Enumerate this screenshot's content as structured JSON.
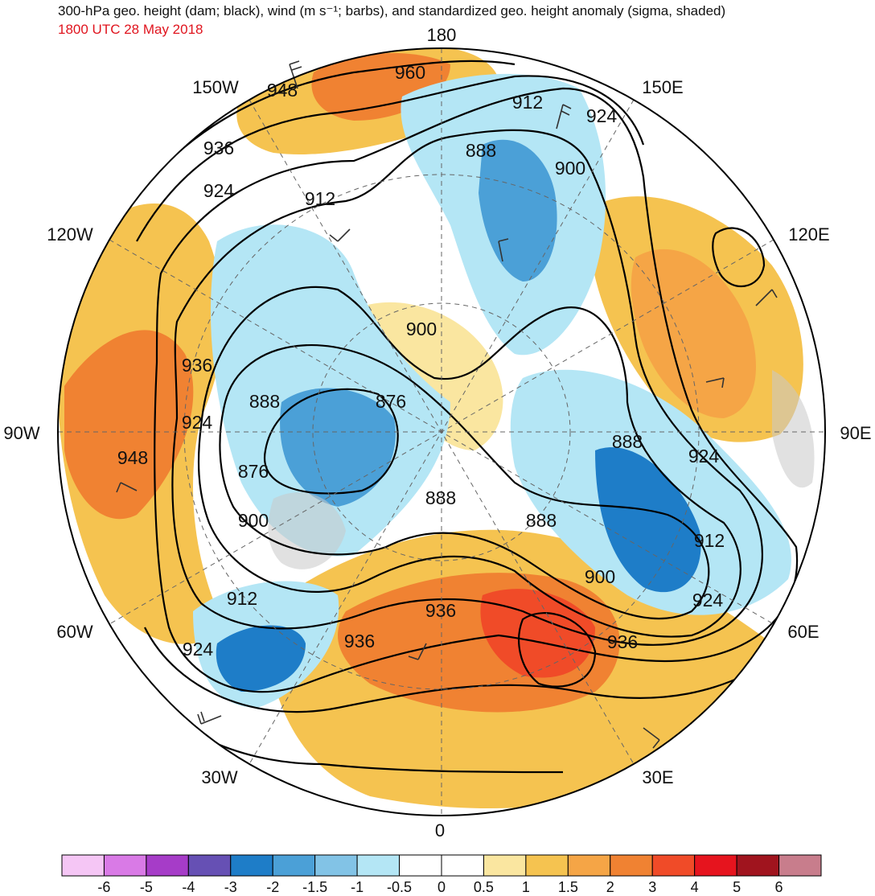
{
  "header": {
    "title": "300-hPa geo. height (dam; black), wind (m s⁻¹; barbs), and standardized geo. height anomaly (sigma, shaded)",
    "valid_time": "1800 UTC 28 May 2018"
  },
  "longitude_labels": [
    "180",
    "150E",
    "120E",
    "90E",
    "60E",
    "30E",
    "0",
    "30W",
    "60W",
    "90W",
    "120W",
    "150W"
  ],
  "contour_labels": [
    "960",
    "948",
    "912",
    "924",
    "936",
    "924",
    "912",
    "888",
    "900",
    "900",
    "876",
    "888",
    "876",
    "900",
    "888",
    "888",
    "888",
    "912",
    "924",
    "900",
    "924",
    "936",
    "936",
    "936",
    "912",
    "924",
    "948",
    "924",
    "936"
  ],
  "colorbar": {
    "labels": [
      "-6",
      "-5",
      "-4",
      "-3",
      "-2",
      "-1.5",
      "-1",
      "-0.5",
      "0",
      "0.5",
      "1",
      "1.5",
      "2",
      "3",
      "4",
      "5",
      "6"
    ],
    "colors": [
      "#f5c6f5",
      "#d97ae6",
      "#a63cc8",
      "#6650b4",
      "#1e7dc8",
      "#4ba0d7",
      "#82c3e6",
      "#b4e6f5",
      "#ffffff",
      "#ffffff",
      "#fae6a0",
      "#f5c350",
      "#f5a546",
      "#f08232",
      "#f04b28",
      "#e6141e",
      "#a0141e",
      "#c87d8c"
    ]
  },
  "colors": {
    "land_gray": "#c8c8c8",
    "contour": "#000000",
    "title_red": "#e0141e"
  }
}
